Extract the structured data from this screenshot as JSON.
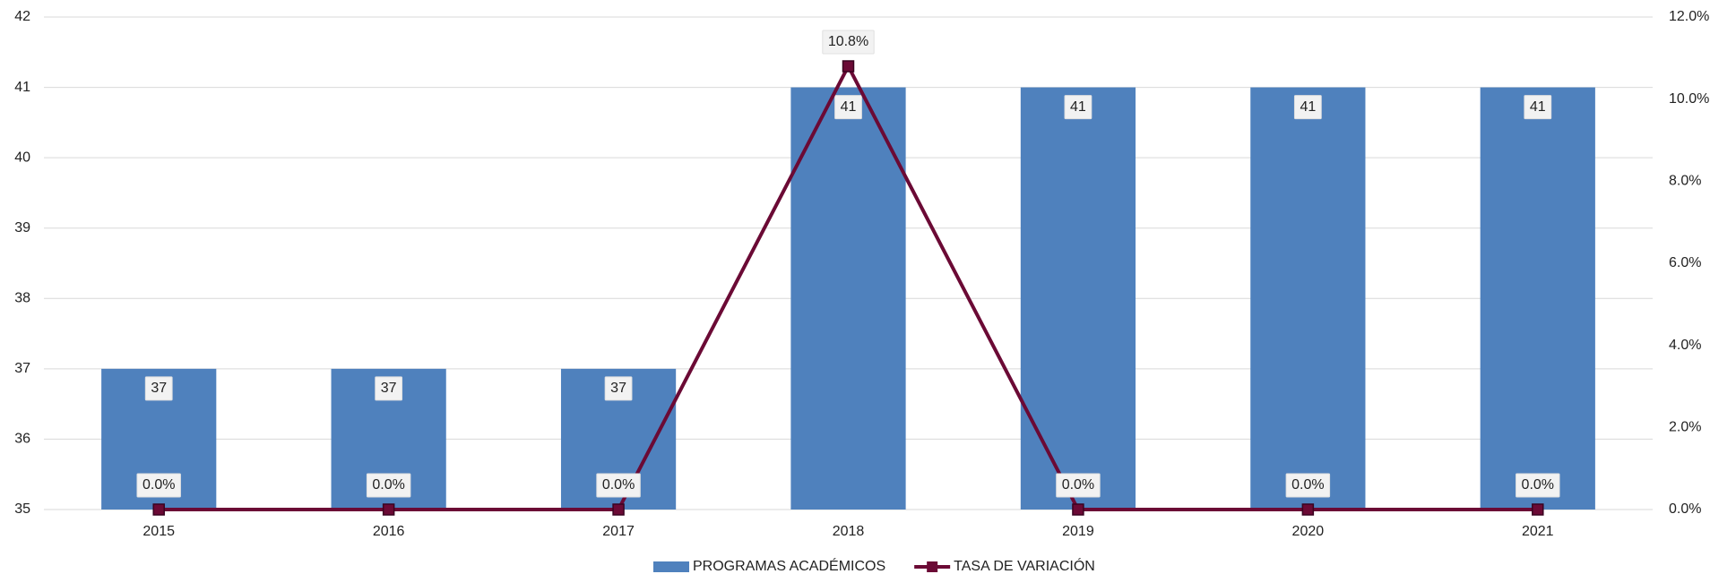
{
  "chart_data": {
    "type": "bar_line",
    "categories": [
      "2015",
      "2016",
      "2017",
      "2018",
      "2019",
      "2020",
      "2021"
    ],
    "series": [
      {
        "name": "PROGRAMAS ACADÉMICOS",
        "type": "bar",
        "color": "#4f81bd",
        "values": [
          37,
          37,
          37,
          41,
          41,
          41,
          41
        ]
      },
      {
        "name": "TASA DE VARIACIÓN",
        "type": "line",
        "axis": "y2",
        "color": "#6b0a35",
        "values": [
          0,
          0,
          0,
          10.8,
          0,
          0,
          0
        ],
        "value_labels": [
          "0.0%",
          "0.0%",
          "0.0%",
          "10.8%",
          "0.0%",
          "0.0%",
          "0.0%"
        ]
      }
    ],
    "ylim": [
      35,
      42
    ],
    "yticks": [
      35,
      36,
      37,
      38,
      39,
      40,
      41,
      42
    ],
    "y2lim": [
      0,
      12
    ],
    "y2ticks": [
      {
        "value": 0,
        "label": "0.0%"
      },
      {
        "value": 2,
        "label": "2.0%"
      },
      {
        "value": 4,
        "label": "4.0%"
      },
      {
        "value": 6,
        "label": "6.0%"
      },
      {
        "value": 8,
        "label": "8.0%"
      },
      {
        "value": 10,
        "label": "10.0%"
      },
      {
        "value": 12,
        "label": "12.0%"
      }
    ],
    "grid": true,
    "legend": "bottom"
  }
}
